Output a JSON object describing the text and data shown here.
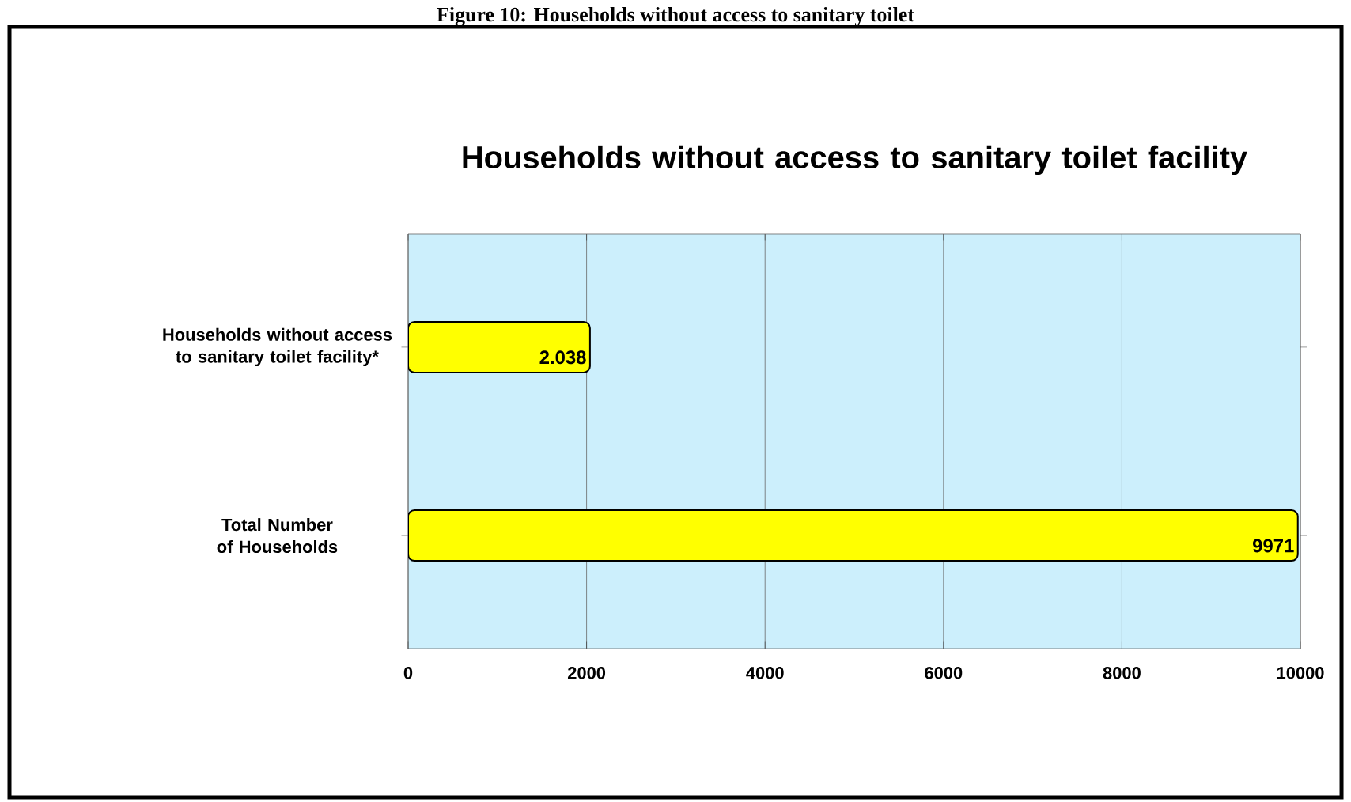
{
  "chart_data": {
    "type": "bar",
    "orientation": "horizontal",
    "title": "Households without access to sanitary toilet facility",
    "annotations": [
      "Figure 10: Households without access to sanitary toilet"
    ],
    "categories": [
      "Households without access to sanitary toilet facility*",
      "Total Number of Households"
    ],
    "values": [
      2038,
      9971
    ],
    "value_labels": [
      "2.038",
      "9971"
    ],
    "color": "#ffff00",
    "xlim": [
      0,
      10000
    ],
    "xticks": [
      0,
      2000,
      4000,
      6000,
      8000,
      10000
    ],
    "grid": "x"
  }
}
